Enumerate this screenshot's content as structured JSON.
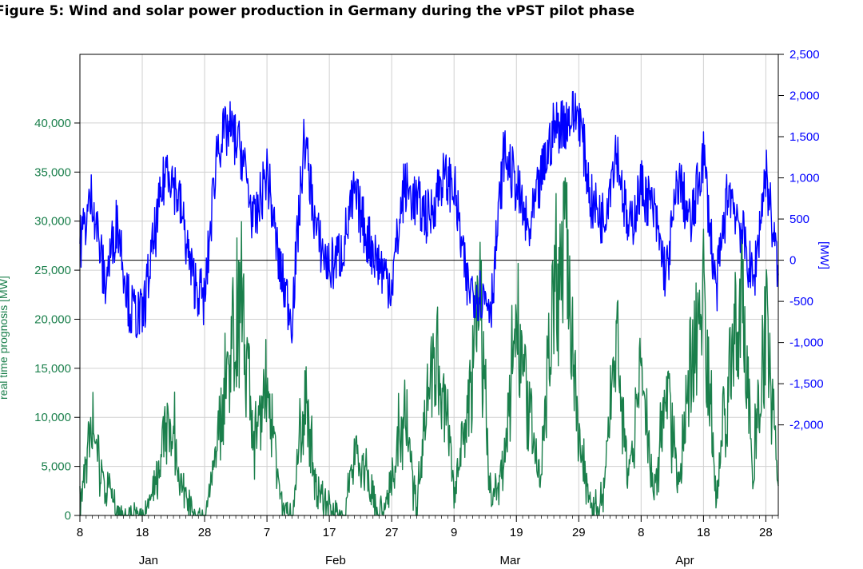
{
  "title": "Figure 5: Wind and solar power production in Germany during the vPST pilot phase",
  "chart_data": {
    "type": "line",
    "xlabel_months": [
      "Jan",
      "Feb",
      "Mar",
      "Apr"
    ],
    "x_tick_labels": [
      "8",
      "18",
      "28",
      "7",
      "17",
      "27",
      "9",
      "19",
      "29",
      "8",
      "18",
      "28"
    ],
    "x_range": [
      "2014-01-08",
      "2014-04-30"
    ],
    "y_left": {
      "label": "real time prognosis [MW]",
      "ticks": [
        "0",
        "5,000",
        "10,000",
        "15,000",
        "20,000",
        "25,000",
        "30,000",
        "35,000",
        "40,000"
      ],
      "range": [
        0,
        47000
      ],
      "color": "#1a7f4b"
    },
    "y_right": {
      "label": "[MW]",
      "ticks": [
        "-2,000",
        "-1,500",
        "-1,000",
        "-500",
        "0",
        "500",
        "1,000",
        "1,500",
        "2,000",
        "2,500"
      ],
      "range": [
        -3100,
        2500
      ],
      "color": "#0000ff"
    },
    "grid": true,
    "zero_line_right_axis": true,
    "series": [
      {
        "name": "",
        "axis": "left",
        "color": "#1a7f4b",
        "x": [
          "2014-01-08",
          "2014-01-10",
          "2014-01-12",
          "2014-01-14",
          "2014-01-16",
          "2014-01-18",
          "2014-01-20",
          "2014-01-22",
          "2014-01-24",
          "2014-01-26",
          "2014-01-28",
          "2014-01-30",
          "2014-02-01",
          "2014-02-03",
          "2014-02-05",
          "2014-02-07",
          "2014-02-09",
          "2014-02-11",
          "2014-02-13",
          "2014-02-15",
          "2014-02-17",
          "2014-02-19",
          "2014-02-21",
          "2014-02-23",
          "2014-02-25",
          "2014-02-27",
          "2014-03-01",
          "2014-03-03",
          "2014-03-05",
          "2014-03-07",
          "2014-03-09",
          "2014-03-11",
          "2014-03-13",
          "2014-03-15",
          "2014-03-17",
          "2014-03-19",
          "2014-03-21",
          "2014-03-23",
          "2014-03-25",
          "2014-03-27",
          "2014-03-29",
          "2014-03-31",
          "2014-04-02",
          "2014-04-04",
          "2014-04-06",
          "2014-04-08",
          "2014-04-10",
          "2014-04-12",
          "2014-04-14",
          "2014-04-16",
          "2014-04-18",
          "2014-04-20",
          "2014-04-22",
          "2014-04-24",
          "2014-04-26",
          "2014-04-28",
          "2014-04-30"
        ],
        "values": [
          3000,
          11000,
          5000,
          2000,
          1500,
          900,
          5000,
          11500,
          6000,
          1500,
          800,
          10000,
          20000,
          28000,
          8000,
          18000,
          3500,
          1200,
          14000,
          4000,
          2500,
          800,
          9000,
          6000,
          1500,
          5000,
          13000,
          2500,
          18000,
          19000,
          4000,
          12000,
          24500,
          3000,
          7500,
          22000,
          14000,
          6000,
          29000,
          33000,
          12000,
          2000,
          4000,
          21000,
          5000,
          19000,
          3000,
          17000,
          5000,
          19000,
          27000,
          4000,
          16000,
          27000,
          6000,
          25000,
          4000
        ]
      },
      {
        "name": "",
        "axis": "right",
        "color": "#0000ff",
        "x": [
          "2014-01-08",
          "2014-01-10",
          "2014-01-12",
          "2014-01-14",
          "2014-01-16",
          "2014-01-18",
          "2014-01-20",
          "2014-01-22",
          "2014-01-24",
          "2014-01-26",
          "2014-01-28",
          "2014-01-30",
          "2014-02-01",
          "2014-02-03",
          "2014-02-05",
          "2014-02-07",
          "2014-02-09",
          "2014-02-11",
          "2014-02-13",
          "2014-02-15",
          "2014-02-17",
          "2014-02-19",
          "2014-02-21",
          "2014-02-23",
          "2014-02-25",
          "2014-02-27",
          "2014-03-01",
          "2014-03-03",
          "2014-03-05",
          "2014-03-07",
          "2014-03-09",
          "2014-03-11",
          "2014-03-13",
          "2014-03-15",
          "2014-03-17",
          "2014-03-19",
          "2014-03-21",
          "2014-03-23",
          "2014-03-25",
          "2014-03-27",
          "2014-03-29",
          "2014-03-31",
          "2014-04-02",
          "2014-04-04",
          "2014-04-06",
          "2014-04-08",
          "2014-04-10",
          "2014-04-12",
          "2014-04-14",
          "2014-04-16",
          "2014-04-18",
          "2014-04-20",
          "2014-04-22",
          "2014-04-24",
          "2014-04-26",
          "2014-04-28",
          "2014-04-30"
        ],
        "values": [
          200,
          800,
          -300,
          500,
          -600,
          -700,
          300,
          1200,
          700,
          -200,
          -500,
          1400,
          1600,
          1300,
          400,
          1100,
          -100,
          -700,
          1500,
          300,
          -100,
          100,
          800,
          300,
          -50,
          -300,
          900,
          700,
          500,
          1000,
          900,
          -300,
          -400,
          -500,
          1300,
          900,
          300,
          1000,
          1600,
          1700,
          1800,
          700,
          500,
          1400,
          300,
          900,
          600,
          -200,
          1000,
          400,
          1300,
          -400,
          900,
          400,
          -300,
          1100,
          -200
        ]
      }
    ]
  }
}
